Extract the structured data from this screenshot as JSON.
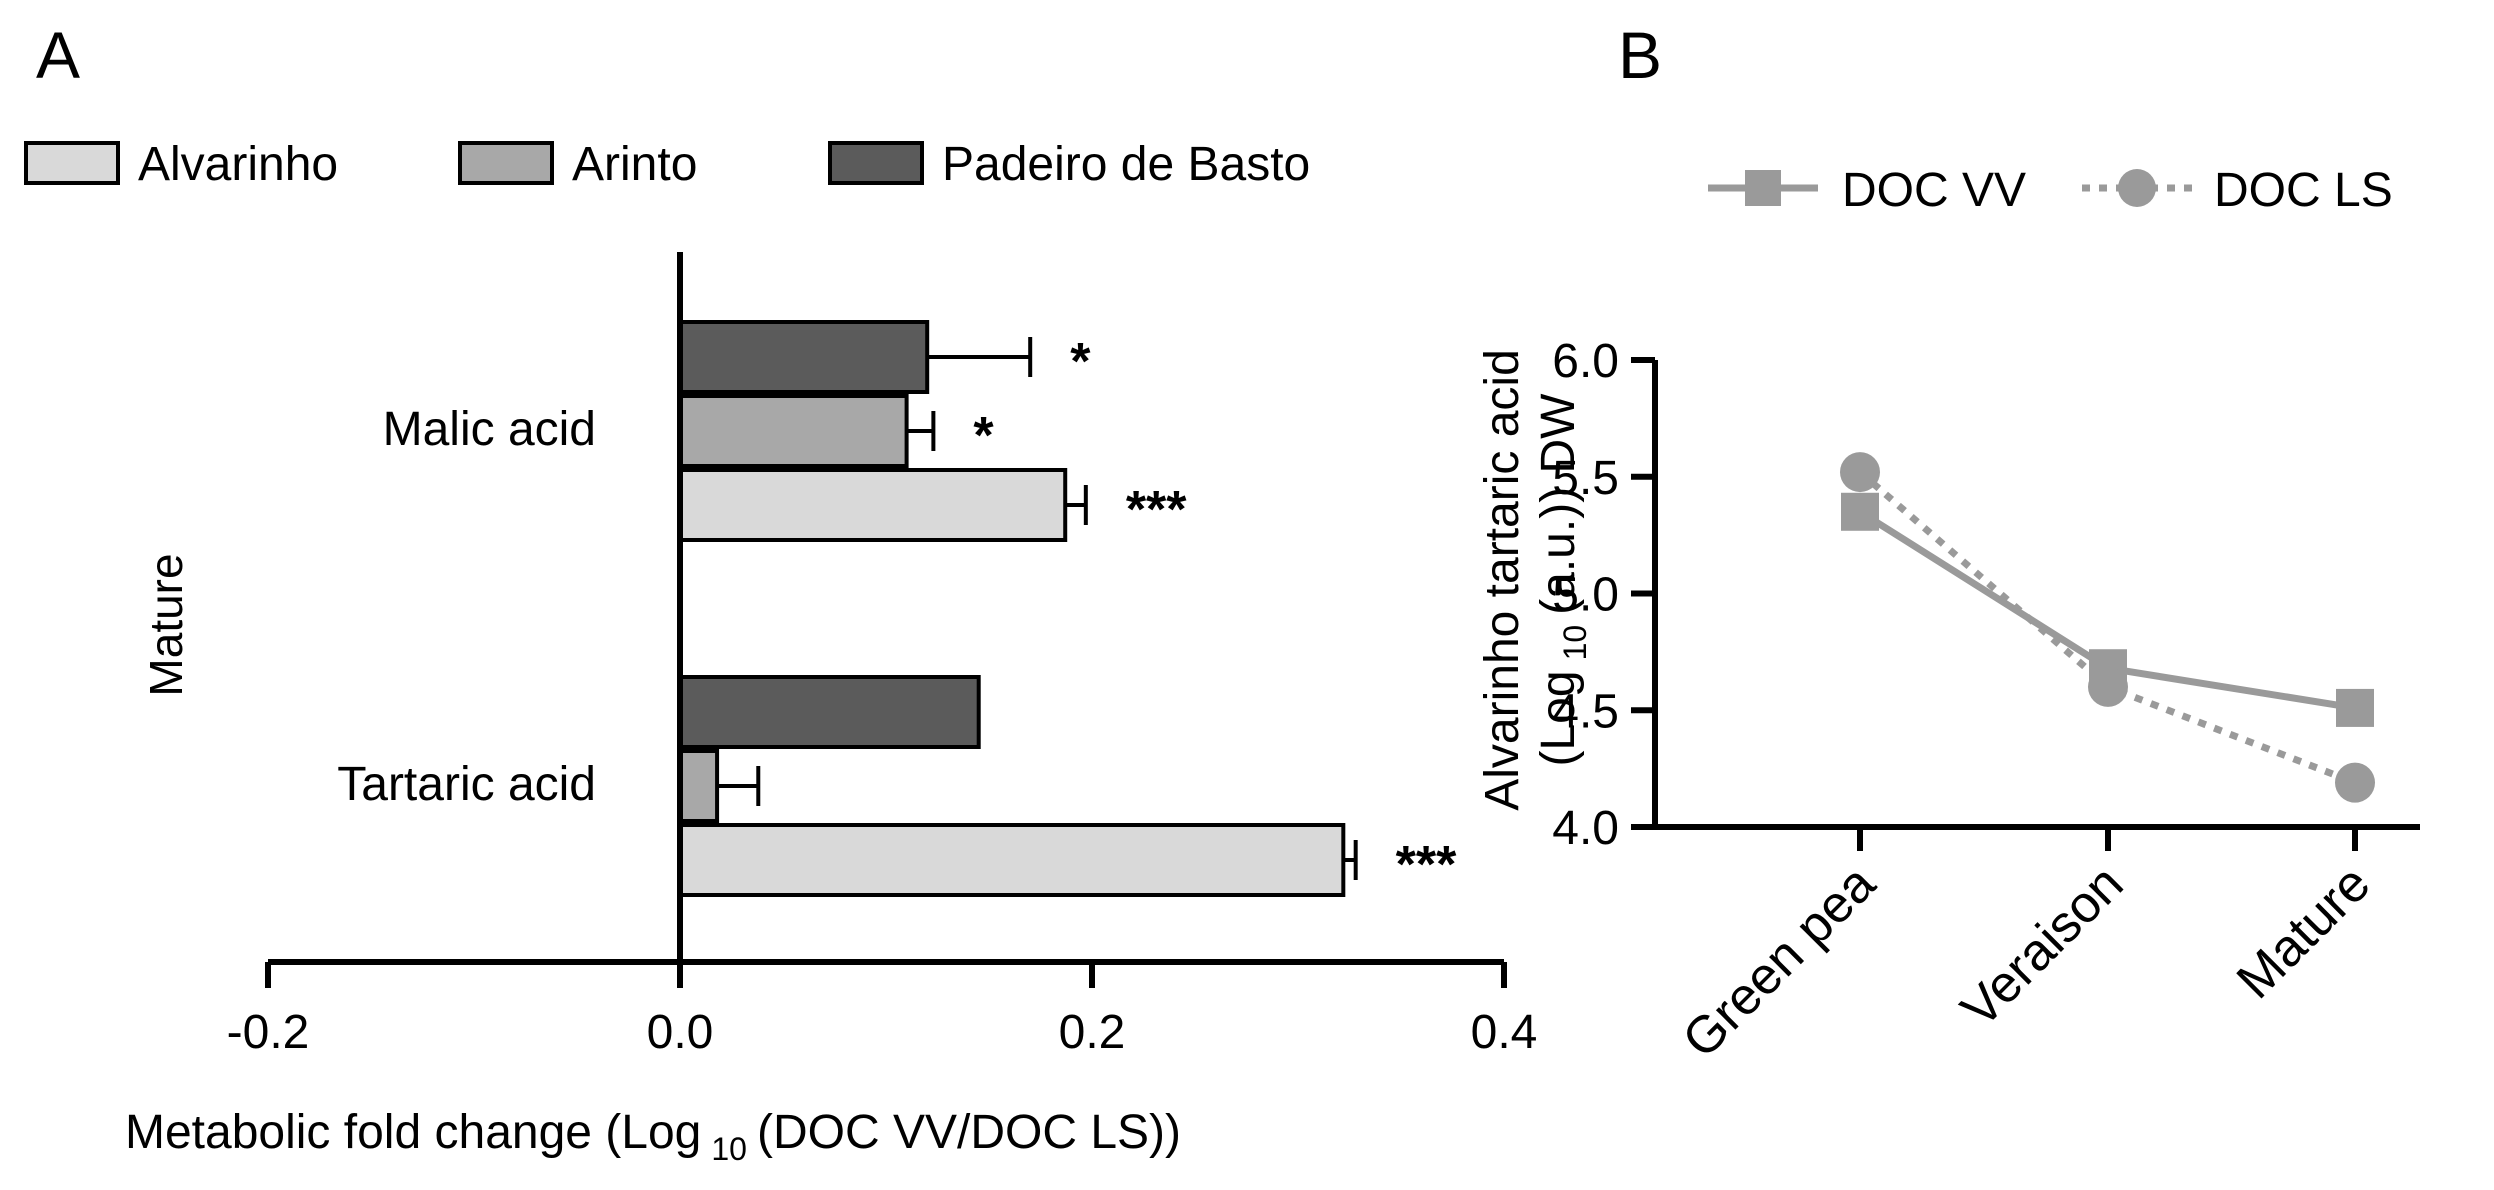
{
  "chart_data": [
    {
      "panel_label": "A",
      "type": "bar",
      "orientation": "horizontal",
      "group_label": "Mature",
      "categories": [
        "Malic acid",
        "Tartaric acid"
      ],
      "series": [
        {
          "name": "Padeiro de Basto",
          "color": "#5b5b5b",
          "values": [
            0.12,
            0.145
          ],
          "errors": [
            0.05,
            0.0
          ],
          "significance": [
            "*",
            ""
          ]
        },
        {
          "name": "Arinto",
          "color": "#a8a8a8",
          "values": [
            0.11,
            0.018
          ],
          "errors": [
            0.013,
            0.02
          ],
          "significance": [
            "*",
            ""
          ]
        },
        {
          "name": "Alvarinho",
          "color": "#d9d9d9",
          "values": [
            0.187,
            0.322
          ],
          "errors": [
            0.01,
            0.006
          ],
          "significance": [
            "***",
            "***"
          ]
        }
      ],
      "legend_order": [
        "Alvarinho",
        "Arinto",
        "Padeiro de Basto"
      ],
      "xlim": [
        -0.2,
        0.4
      ],
      "xticks": [
        -0.2,
        0.0,
        0.2,
        0.4
      ],
      "xtick_labels": [
        "-0.2",
        "0.0",
        "0.2",
        "0.4"
      ],
      "xlabel": "Metabolic fold change (Log",
      "xlabel_sub": "10",
      "xlabel_tail": "(DOC VV/DOC LS))"
    },
    {
      "panel_label": "B",
      "type": "line",
      "categories": [
        "Green pea",
        "Veraison",
        "Mature"
      ],
      "series": [
        {
          "name": "DOC VV",
          "marker": "square",
          "dash": "solid",
          "color": "#9a9a9a",
          "values": [
            5.35,
            4.68,
            4.51
          ]
        },
        {
          "name": "DOC LS",
          "marker": "circle",
          "dash": "dotted",
          "color": "#9a9a9a",
          "values": [
            5.52,
            4.6,
            4.19
          ]
        }
      ],
      "ylim": [
        4.0,
        6.0
      ],
      "yticks": [
        4.0,
        4.5,
        5.0,
        5.5,
        6.0
      ],
      "ytick_labels": [
        "4.0",
        "4.5",
        "5.0",
        "5.5",
        "6.0"
      ],
      "ylabel_line1": "Alvarinho tartaric acid",
      "ylabel_line2_a": "(Log",
      "ylabel_line2_sub": "10",
      "ylabel_line2_b": "(a.u.)) DW"
    }
  ]
}
